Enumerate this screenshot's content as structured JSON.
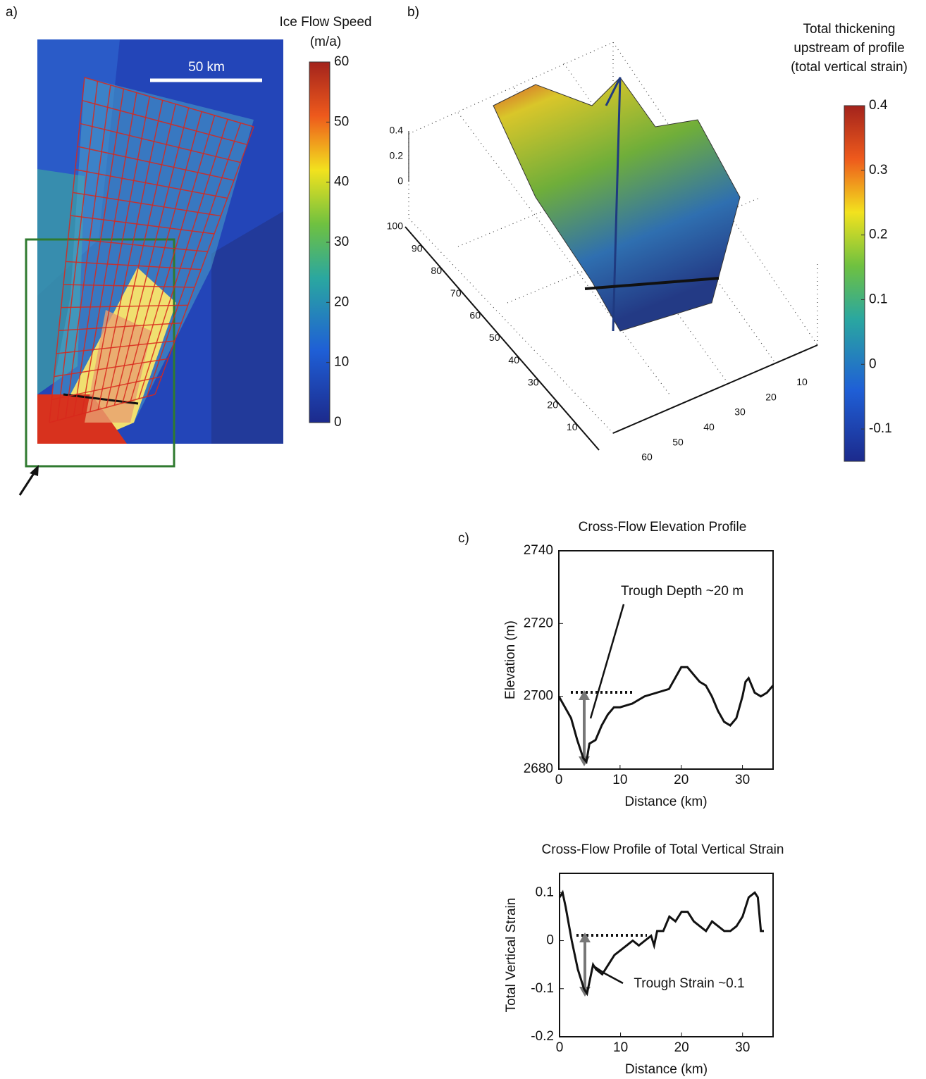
{
  "chart_data": [
    {
      "type": "map",
      "label": "a)",
      "scale_bar": "50 km",
      "colorbar_title": "Ice Flow Speed",
      "colorbar_units": "(m/a)",
      "clim": [
        0,
        60
      ],
      "cticks": [
        0,
        10,
        20,
        30,
        40,
        50,
        60
      ]
    },
    {
      "type": "surface",
      "label": "b)",
      "colorbar_title": [
        "Total thickening",
        "upstream of profile",
        "(total vertical strain)"
      ],
      "clim": [
        -0.15,
        0.4
      ],
      "cticks": [
        -0.1,
        0,
        0.1,
        0.2,
        0.3,
        0.4
      ],
      "xlim": [
        0,
        60
      ],
      "xticks": [
        10,
        20,
        30,
        40,
        50,
        60
      ],
      "ylim": [
        0,
        100
      ],
      "yticks": [
        10,
        20,
        30,
        40,
        50,
        60,
        70,
        80,
        90,
        100
      ],
      "zlim": [
        0,
        0.4
      ],
      "zticks": [
        0,
        0.2,
        0.4
      ]
    },
    {
      "type": "line",
      "label": "c)",
      "title": "Cross-Flow Elevation Profile",
      "xlabel": "Distance (km)",
      "ylabel": "Elevation (m)",
      "annotation": "Trough Depth ~20 m",
      "color": "#111111",
      "xlim": [
        0,
        35
      ],
      "xticks": [
        0,
        10,
        20,
        30
      ],
      "ylim": [
        2680,
        2740
      ],
      "yticks": [
        2680,
        2700,
        2720,
        2740
      ],
      "x": [
        0,
        1,
        2,
        3,
        4,
        4.5,
        5,
        6,
        7,
        8,
        9,
        10,
        12,
        14,
        16,
        18,
        19,
        20,
        21,
        22,
        23,
        24,
        25,
        26,
        27,
        28,
        29,
        30,
        30.5,
        31,
        32,
        33,
        34,
        35
      ],
      "values": [
        2700,
        2697,
        2694,
        2688,
        2683,
        2682,
        2687,
        2688,
        2692,
        2695,
        2697,
        2697,
        2698,
        2700,
        2701,
        2702,
        2705,
        2708,
        2708,
        2706,
        2704,
        2703,
        2700,
        2696,
        2693,
        2692,
        2694,
        2700,
        2704,
        2705,
        2701,
        2700,
        2701,
        2703
      ]
    },
    {
      "type": "line",
      "title": "Cross-Flow Profile of Total Vertical Strain",
      "xlabel": "Distance (km)",
      "ylabel": "Total Vertical Strain",
      "annotation": "Trough Strain ~0.1",
      "color": "#111111",
      "xlim": [
        0,
        35
      ],
      "xticks": [
        0,
        10,
        20,
        30
      ],
      "ylim": [
        -0.2,
        0.14
      ],
      "yticks": [
        -0.2,
        -0.1,
        0,
        0.1
      ],
      "x": [
        0,
        0.5,
        1,
        2,
        3,
        4,
        4.5,
        5,
        5.5,
        6,
        7,
        8,
        9,
        10,
        11,
        12,
        13,
        14,
        15,
        15.5,
        16,
        17,
        18,
        19,
        20,
        21,
        22,
        23,
        24,
        25,
        26,
        27,
        28,
        29,
        30,
        31,
        32,
        32.5,
        33,
        33.5
      ],
      "values": [
        0.09,
        0.1,
        0.07,
        0.0,
        -0.06,
        -0.1,
        -0.11,
        -0.08,
        -0.05,
        -0.06,
        -0.07,
        -0.05,
        -0.03,
        -0.02,
        -0.01,
        0.0,
        -0.01,
        0.0,
        0.01,
        -0.01,
        0.02,
        0.02,
        0.05,
        0.04,
        0.06,
        0.06,
        0.04,
        0.03,
        0.02,
        0.04,
        0.03,
        0.02,
        0.02,
        0.03,
        0.05,
        0.09,
        0.1,
        0.09,
        0.02,
        0.02
      ]
    }
  ]
}
